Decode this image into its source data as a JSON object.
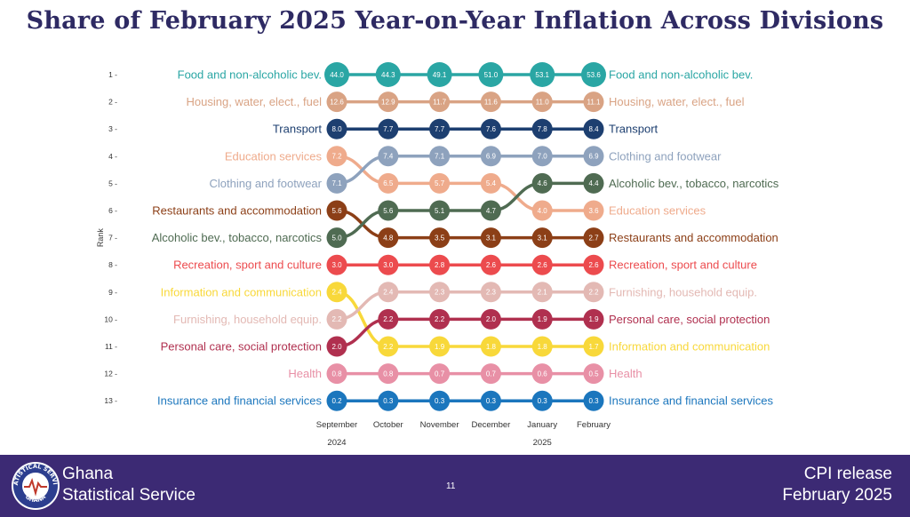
{
  "title": "Share of February 2025 Year-on-Year Inflation Across Divisions",
  "footer": {
    "org_line1": "Ghana",
    "org_line2": "Statistical Service",
    "logo_text_top": "STATISTICAL SERVICE",
    "logo_text_bottom": "GHANA",
    "logo_icon": "ghana-statistical-service-logo",
    "page_number": "11",
    "release_line1": "CPI release",
    "release_line2": "February  2025"
  },
  "chart_data": {
    "type": "bump",
    "ylabel": "Rank",
    "months": [
      "September",
      "October",
      "November",
      "December",
      "January",
      "February"
    ],
    "year_labels": [
      {
        "label": "2024",
        "month_index": 0
      },
      {
        "label": "2025",
        "month_index": 4
      }
    ],
    "ranks": [
      1,
      2,
      3,
      4,
      5,
      6,
      7,
      8,
      9,
      10,
      11,
      12,
      13
    ],
    "ylim": [
      1,
      13
    ],
    "series": [
      {
        "name": "Food and non-alcoholic bev.",
        "color": "#2aa6a4",
        "ranks": [
          1,
          1,
          1,
          1,
          1,
          1
        ],
        "values": [
          "44.0",
          "44.3",
          "49.1",
          "51.0",
          "53.1",
          "53.6"
        ]
      },
      {
        "name": "Housing, water, elect., fuel",
        "color": "#d9a384",
        "ranks": [
          2,
          2,
          2,
          2,
          2,
          2
        ],
        "values": [
          "12.6",
          "12.9",
          "11.7",
          "11.6",
          "11.0",
          "11.1"
        ]
      },
      {
        "name": "Transport",
        "color": "#1d3f70",
        "ranks": [
          3,
          3,
          3,
          3,
          3,
          3
        ],
        "values": [
          "8.0",
          "7.7",
          "7.7",
          "7.6",
          "7.8",
          "8.4"
        ]
      },
      {
        "name": "Education services",
        "color": "#efab8c",
        "ranks": [
          4,
          5,
          5,
          5,
          6,
          6
        ],
        "values": [
          "7.2",
          "6.5",
          "5.7",
          "5.4",
          "4.0",
          "3.6"
        ]
      },
      {
        "name": "Clothing and footwear",
        "color": "#8ea2bd",
        "ranks": [
          5,
          4,
          4,
          4,
          4,
          4
        ],
        "values": [
          "7.1",
          "7.4",
          "7.1",
          "6.9",
          "7.0",
          "6.9"
        ]
      },
      {
        "name": "Restaurants and accommodation",
        "color": "#8c3f17",
        "ranks": [
          6,
          7,
          7,
          7,
          7,
          7
        ],
        "values": [
          "5.6",
          "4.8",
          "3.5",
          "3.1",
          "3.1",
          "2.7"
        ]
      },
      {
        "name": "Alcoholic bev., tobacco, narcotics",
        "color": "#4f6b52",
        "ranks": [
          7,
          6,
          6,
          6,
          5,
          5
        ],
        "values": [
          "5.0",
          "5.6",
          "5.1",
          "4.7",
          "4.6",
          "4.4"
        ]
      },
      {
        "name": "Recreation, sport and culture",
        "color": "#ec4b4e",
        "ranks": [
          8,
          8,
          8,
          8,
          8,
          8
        ],
        "values": [
          "3.0",
          "3.0",
          "2.8",
          "2.6",
          "2.6",
          "2.6"
        ]
      },
      {
        "name": "Information and communication",
        "color": "#f8d83a",
        "ranks": [
          9,
          11,
          11,
          11,
          11,
          11
        ],
        "values": [
          "2.4",
          "2.2",
          "1.9",
          "1.8",
          "1.8",
          "1.7"
        ]
      },
      {
        "name": "Furnishing, household equip.",
        "color": "#e3b9b4",
        "ranks": [
          10,
          9,
          9,
          9,
          9,
          9
        ],
        "values": [
          "2.2",
          "2.4",
          "2.3",
          "2.3",
          "2.1",
          "2.2"
        ]
      },
      {
        "name": "Personal care, social protection",
        "color": "#b0304f",
        "ranks": [
          11,
          10,
          10,
          10,
          10,
          10
        ],
        "values": [
          "2.0",
          "2.2",
          "2.2",
          "2.0",
          "1.9",
          "1.9"
        ]
      },
      {
        "name": "Health",
        "color": "#e890a6",
        "ranks": [
          12,
          12,
          12,
          12,
          12,
          12
        ],
        "values": [
          "0.8",
          "0.8",
          "0.7",
          "0.7",
          "0.6",
          "0.5"
        ]
      },
      {
        "name": "Insurance and financial services",
        "color": "#1b76bd",
        "ranks": [
          13,
          13,
          13,
          13,
          13,
          13
        ],
        "values": [
          "0.2",
          "0.3",
          "0.3",
          "0.3",
          "0.3",
          "0.3"
        ]
      }
    ]
  }
}
